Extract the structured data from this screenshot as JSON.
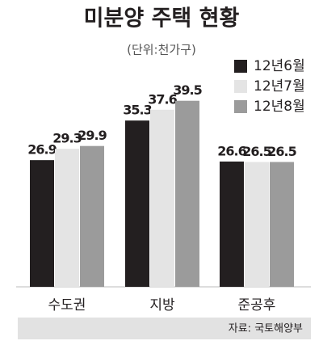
{
  "chart_data": {
    "type": "bar",
    "title": "미분양 주택 현황",
    "subtitle": "(단위:천가구)",
    "categories": [
      "수도권",
      "지방",
      "준공후"
    ],
    "series": [
      {
        "name": "12년6월",
        "color": "#231f20",
        "values": [
          26.9,
          35.3,
          26.6
        ]
      },
      {
        "name": "12년7월",
        "color": "#e4e4e4",
        "values": [
          29.3,
          37.6,
          26.5
        ]
      },
      {
        "name": "12년8월",
        "color": "#9b9b9b",
        "values": [
          29.9,
          39.5,
          26.5
        ]
      }
    ],
    "legend": "upper right",
    "source": "자료: 국토해양부"
  }
}
